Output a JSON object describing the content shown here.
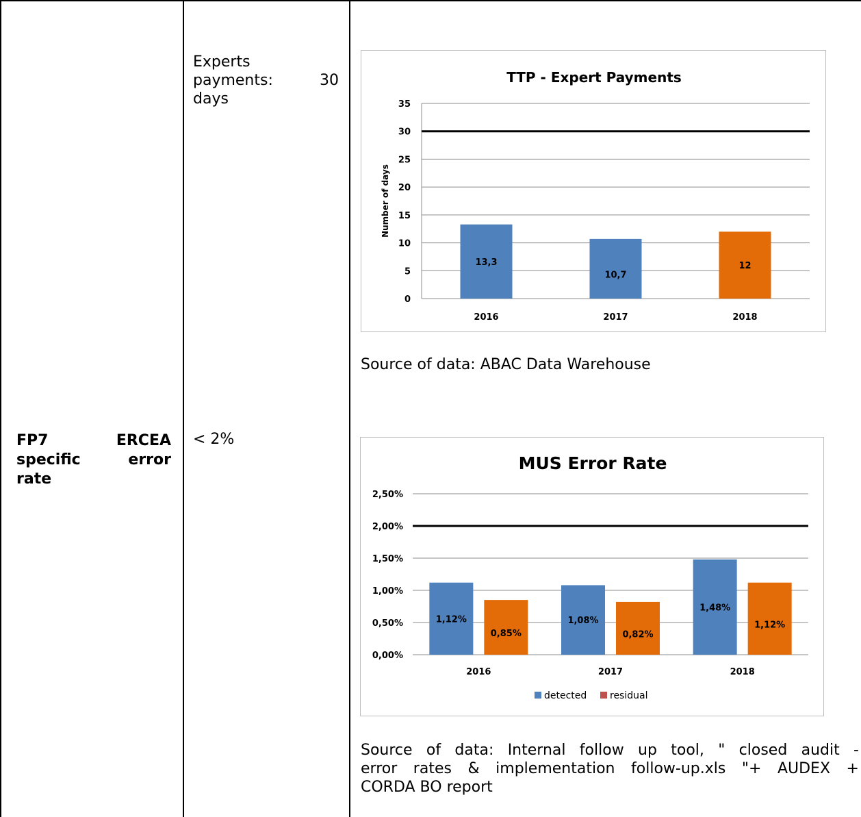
{
  "row": {
    "label_top": "",
    "target_top_lines": [
      "Experts",
      "payments:",
      "30",
      "days"
    ],
    "label_lines": [
      [
        "FP7",
        "ERCEA"
      ],
      [
        "specific",
        "error"
      ],
      [
        "rate"
      ]
    ],
    "target": "< 2%"
  },
  "charts": {
    "ttp": {
      "source": "Source of data: ABAC Data Warehouse"
    },
    "mus": {
      "source_lines": [
        "Source of data: Internal follow up tool, \" closed audit -",
        "error rates & implementation follow-up.xls \"+ AUDEX +",
        "CORDA BO report"
      ]
    }
  },
  "chart_data": [
    {
      "type": "bar",
      "title": "TTP - Expert Payments",
      "ylabel": "Number of days",
      "xlabel": "",
      "categories": [
        "2016",
        "2017",
        "2018"
      ],
      "values": [
        13.3,
        10.7,
        12
      ],
      "value_labels": [
        "13,3",
        "10,7",
        "12"
      ],
      "bar_colors": [
        "#4f81bd",
        "#4f81bd",
        "#e36c09"
      ],
      "ylim": [
        0,
        35
      ],
      "yticks": [
        "0",
        "5",
        "10",
        "15",
        "20",
        "25",
        "30",
        "35"
      ],
      "target_line": 30,
      "grid": true,
      "legend": "none"
    },
    {
      "type": "bar",
      "title": "MUS Error Rate",
      "xlabel": "",
      "ylabel": "",
      "categories": [
        "2016",
        "2017",
        "2018"
      ],
      "series": [
        {
          "name": "detected",
          "values": [
            1.12,
            1.08,
            1.48
          ],
          "labels": [
            "1,12%",
            "1,08%",
            "1,48%"
          ],
          "color": "#4f81bd",
          "legend_color": "#4f81bd"
        },
        {
          "name": "residual",
          "values": [
            0.85,
            0.82,
            1.12
          ],
          "labels": [
            "0,85%",
            "0,82%",
            "1,12%"
          ],
          "color": "#e36c09",
          "legend_color": "#c0504d"
        }
      ],
      "ylim": [
        0,
        2.5
      ],
      "yticks": [
        "0,00%",
        "0,50%",
        "1,00%",
        "1,50%",
        "2,00%",
        "2,50%"
      ],
      "target_line": 2.0,
      "grid": true,
      "legend": "bottom"
    }
  ]
}
